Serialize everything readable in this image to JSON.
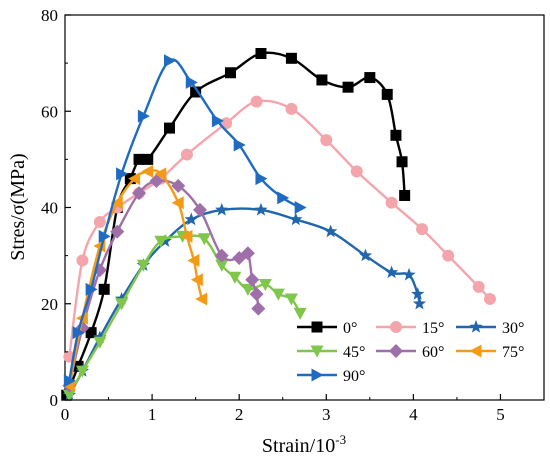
{
  "chart_data": {
    "type": "line",
    "xlabel": "Strain/10",
    "xlabel_exponent": "-3",
    "ylabel": "Stres/σ(MPa)",
    "xlim": [
      0,
      5.5
    ],
    "ylim": [
      0,
      80
    ],
    "xticks": [
      "0",
      "1",
      "2",
      "3",
      "4",
      "5"
    ],
    "yticks": [
      "0",
      "20",
      "40",
      "60",
      "80"
    ],
    "legend_position": "bottom-right",
    "series": [
      {
        "name": "0°",
        "color": "#000000",
        "marker": "square",
        "x": [
          0.02,
          0.15,
          0.3,
          0.45,
          0.6,
          0.75,
          0.85,
          0.95,
          1.2,
          1.5,
          1.9,
          2.25,
          2.6,
          2.95,
          3.25,
          3.5,
          3.7,
          3.8,
          3.87,
          3.9
        ],
        "y": [
          1,
          7,
          14,
          23,
          40,
          46,
          50,
          50,
          56.5,
          64,
          68,
          72,
          71,
          66.5,
          65,
          67,
          63.5,
          55,
          49.5,
          42.5
        ]
      },
      {
        "name": "15°",
        "color": "#f4a5ac",
        "marker": "circle",
        "x": [
          0.05,
          0.2,
          0.4,
          0.6,
          0.85,
          1.1,
          1.4,
          1.85,
          2.2,
          2.6,
          3.0,
          3.35,
          3.75,
          4.1,
          4.4,
          4.75,
          4.88
        ],
        "y": [
          9,
          29,
          37,
          40,
          43,
          46,
          51,
          57.5,
          62,
          60.5,
          54,
          47.5,
          41,
          35.5,
          30,
          23.5,
          21
        ]
      },
      {
        "name": "30°",
        "color": "#2166ac",
        "marker": "star",
        "x": [
          0.05,
          0.2,
          0.4,
          0.65,
          0.9,
          1.15,
          1.45,
          1.8,
          2.25,
          2.65,
          3.05,
          3.45,
          3.75,
          3.95,
          4.05,
          4.07
        ],
        "y": [
          1,
          6,
          13,
          21,
          28,
          33,
          37.5,
          39.5,
          39.5,
          37.5,
          35,
          30,
          26.5,
          26,
          22,
          20
        ]
      },
      {
        "name": "45°",
        "color": "#7fc64b",
        "marker": "triangle-down",
        "x": [
          0.05,
          0.2,
          0.4,
          0.65,
          0.9,
          1.1,
          1.35,
          1.6,
          1.8,
          1.95,
          2.1,
          2.3,
          2.45,
          2.6,
          2.7
        ],
        "y": [
          1,
          6,
          12,
          20,
          28,
          33,
          34,
          33.5,
          28,
          25.5,
          23,
          24,
          22,
          21,
          18
        ]
      },
      {
        "name": "60°",
        "color": "#9e6fa8",
        "marker": "diamond",
        "x": [
          0.05,
          0.2,
          0.4,
          0.6,
          0.85,
          1.05,
          1.3,
          1.55,
          1.8,
          2.0,
          2.1,
          2.15,
          2.2,
          2.22
        ],
        "y": [
          3,
          15,
          27,
          35,
          43,
          45.5,
          44.5,
          39.5,
          30,
          29.5,
          30.5,
          25,
          22,
          19
        ]
      },
      {
        "name": "75°",
        "color": "#f39a16",
        "marker": "triangle-left",
        "x": [
          0.05,
          0.2,
          0.4,
          0.6,
          0.8,
          0.95,
          1.1,
          1.3,
          1.4,
          1.48,
          1.52,
          1.57
        ],
        "y": [
          3,
          17,
          32,
          41,
          46,
          47.5,
          47,
          41,
          34,
          29,
          25,
          21
        ]
      },
      {
        "name": "90°",
        "color": "#1f6bc2",
        "marker": "triangle-right",
        "x": [
          0.05,
          0.15,
          0.3,
          0.45,
          0.65,
          0.9,
          1.2,
          1.45,
          1.75,
          2.0,
          2.25,
          2.5,
          2.7
        ],
        "y": [
          4,
          14,
          23,
          34,
          47,
          59,
          70.5,
          66,
          58,
          53,
          46,
          42,
          40
        ]
      }
    ]
  }
}
